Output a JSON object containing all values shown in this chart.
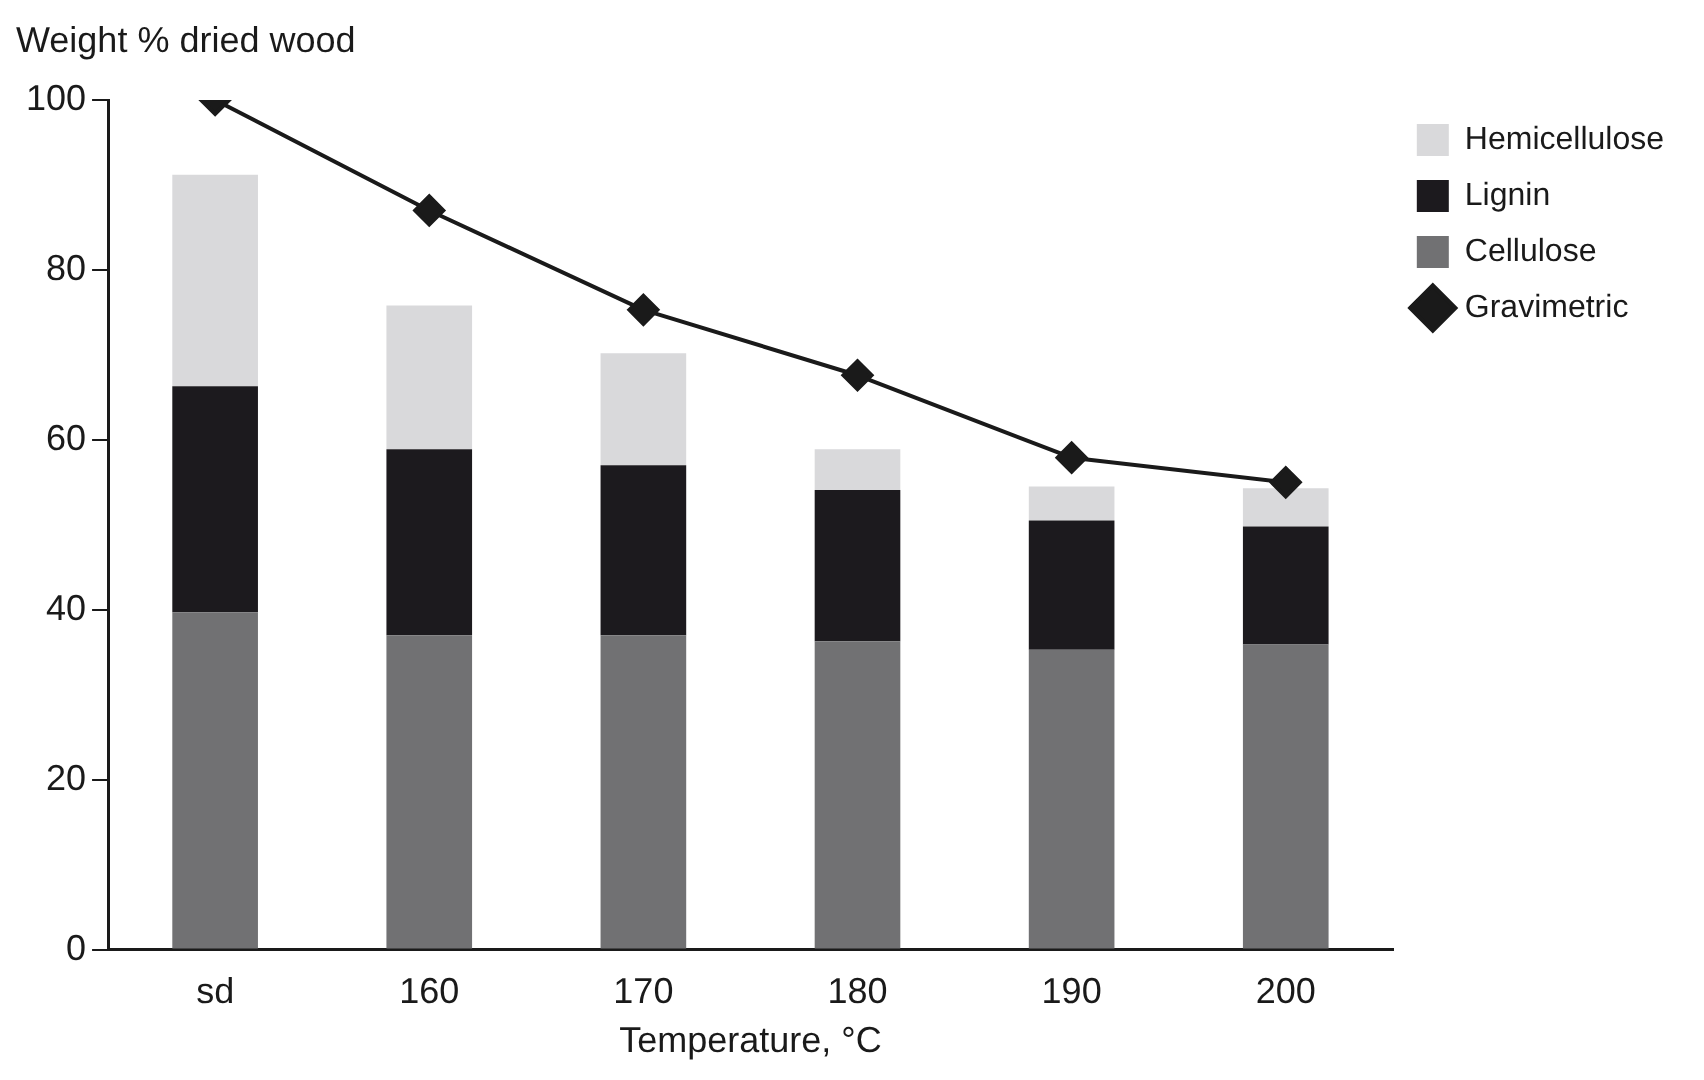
{
  "chart_data": {
    "type": "bar",
    "stacked": true,
    "ylabel": "Weight % dried wood",
    "xlabel": "Temperature, °C",
    "categories": [
      "sd",
      "160",
      "170",
      "180",
      "190",
      "200"
    ],
    "series": [
      {
        "name": "Cellulose",
        "color": "#717173",
        "values": [
          39.7,
          37.0,
          37.0,
          36.3,
          35.3,
          35.9
        ]
      },
      {
        "name": "Lignin",
        "color": "#1c1a1e",
        "values": [
          26.6,
          21.9,
          20.0,
          17.8,
          15.2,
          13.9
        ]
      },
      {
        "name": "Hemicellulose",
        "color": "#d9d9db",
        "values": [
          24.9,
          16.9,
          13.2,
          4.8,
          4.0,
          4.5
        ]
      },
      {
        "name": "Gravimetric",
        "type": "line",
        "color": "#1a1a1a",
        "values": [
          100,
          87.0,
          75.3,
          67.6,
          57.9,
          55.0
        ]
      }
    ],
    "ylim": [
      0,
      100
    ],
    "yticks": [
      0,
      20,
      40,
      60,
      80,
      100
    ],
    "grid": false,
    "legend": "top right",
    "marker": "diamond",
    "line_style": "solid"
  }
}
